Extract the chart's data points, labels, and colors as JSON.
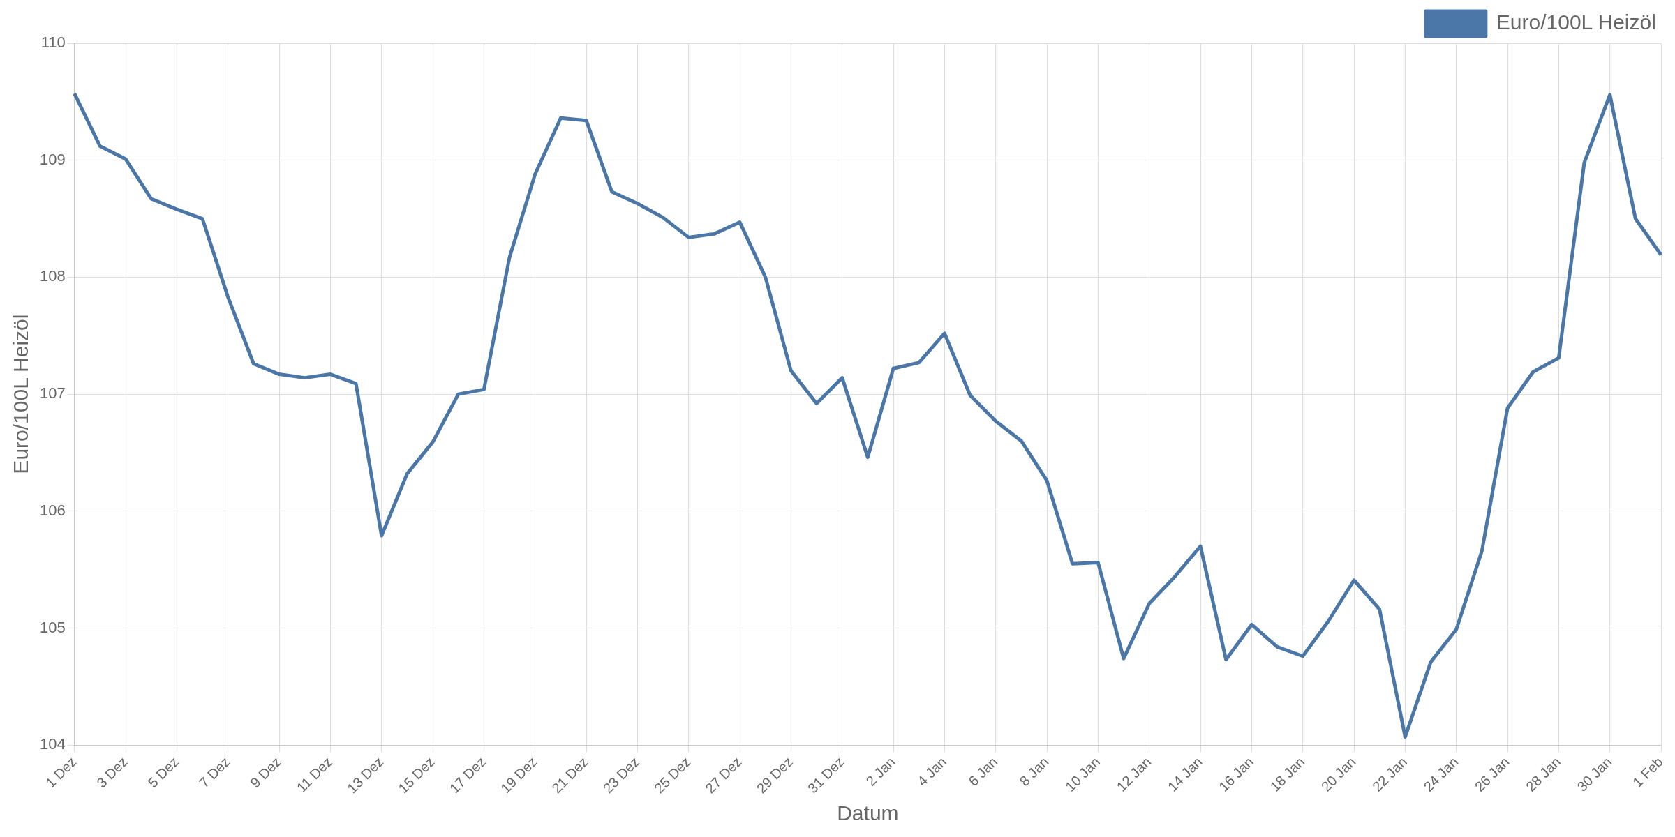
{
  "chart_data": {
    "type": "line",
    "xlabel": "Datum",
    "ylabel": "Euro/100L Heizöl",
    "categories": [
      "1 Dez",
      null,
      "3 Dez",
      null,
      "5 Dez",
      null,
      "7 Dez",
      null,
      "9 Dez",
      null,
      "11 Dez",
      null,
      "13 Dez",
      null,
      "15 Dez",
      null,
      "17 Dez",
      null,
      "19 Dez",
      null,
      "21 Dez",
      null,
      "23 Dez",
      null,
      "25 Dez",
      null,
      "27 Dez",
      null,
      "29 Dez",
      null,
      "31 Dez",
      null,
      "2 Jan",
      null,
      "4 Jan",
      null,
      "6 Jan",
      null,
      "8 Jan",
      null,
      "10 Jan",
      null,
      "12 Jan",
      null,
      "14 Jan",
      null,
      "16 Jan",
      null,
      "18 Jan",
      null,
      "20 Jan",
      null,
      "22 Jan",
      null,
      "24 Jan",
      null,
      "26 Jan",
      null,
      "28 Jan",
      null,
      "30 Jan",
      null,
      "1 Feb"
    ],
    "series": [
      {
        "name": "Euro/100L Heizöl",
        "color": "#4a76a8",
        "values": [
          109.57,
          109.12,
          109.01,
          108.67,
          108.58,
          108.5,
          107.83,
          107.26,
          107.17,
          107.14,
          107.17,
          107.09,
          105.79,
          106.32,
          106.59,
          107.0,
          107.04,
          108.17,
          108.88,
          109.36,
          109.34,
          108.73,
          108.63,
          108.51,
          108.34,
          108.37,
          108.47,
          108.0,
          107.2,
          106.92,
          107.14,
          106.46,
          107.22,
          107.27,
          107.52,
          106.99,
          106.77,
          106.6,
          106.26,
          105.55,
          105.56,
          104.74,
          105.21,
          105.44,
          105.7,
          104.73,
          105.03,
          104.84,
          104.76,
          105.06,
          105.41,
          105.16,
          104.07,
          104.71,
          104.99,
          105.66,
          106.88,
          107.19,
          107.31,
          108.98,
          109.56,
          108.5,
          108.19
        ]
      }
    ],
    "ylim": [
      104,
      110
    ],
    "yticks": [
      104,
      105,
      106,
      107,
      108,
      109,
      110
    ],
    "grid": true,
    "legend": "top right",
    "marker": "none",
    "line_style": "solid"
  }
}
